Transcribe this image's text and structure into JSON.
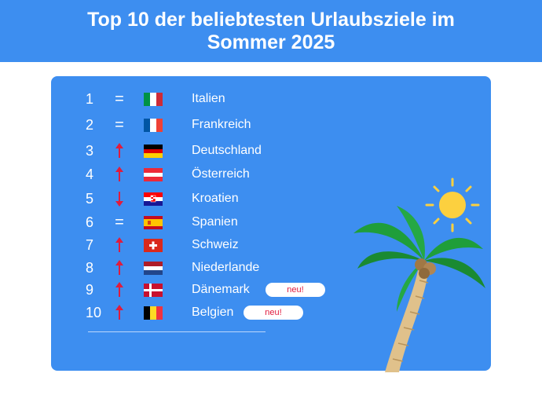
{
  "header": {
    "title": "Top 10 der beliebtesten Urlaubsziele im Sommer 2025"
  },
  "colors": {
    "background_blue": "#3d8ef0",
    "trend_red": "#e01b3d",
    "white": "#ffffff"
  },
  "ranking": [
    {
      "rank": "1",
      "trend": "=",
      "trend_icon": "equal-icon",
      "flag": "flag-italy",
      "country": "Italien"
    },
    {
      "rank": "2",
      "trend": "=",
      "trend_icon": "equal-icon",
      "flag": "flag-france",
      "country": "Frankreich"
    },
    {
      "rank": "3",
      "trend": "",
      "trend_icon": "arrow-up-icon",
      "flag": "flag-germany",
      "country": "Deutschland"
    },
    {
      "rank": "4",
      "trend": "",
      "trend_icon": "arrow-up-icon",
      "flag": "flag-austria",
      "country": "Österreich"
    },
    {
      "rank": "5",
      "trend": "",
      "trend_icon": "arrow-down-icon",
      "flag": "flag-croatia",
      "country": "Kroatien"
    },
    {
      "rank": "6",
      "trend": "=",
      "trend_icon": "equal-icon",
      "flag": "flag-spain",
      "country": "Spanien"
    },
    {
      "rank": "7",
      "trend": "",
      "trend_icon": "arrow-up-icon",
      "flag": "flag-switzerland",
      "country": "Schweiz"
    },
    {
      "rank": "8",
      "trend": "",
      "trend_icon": "arrow-up-icon",
      "flag": "flag-netherlands",
      "country": "Niederlande"
    },
    {
      "rank": "9",
      "trend": "",
      "trend_icon": "arrow-up-icon",
      "flag": "flag-denmark",
      "country": "Dänemark",
      "badge": "neu!"
    },
    {
      "rank": "10",
      "trend": "",
      "trend_icon": "arrow-up-icon",
      "flag": "flag-belgium",
      "country": "Belgien",
      "badge": "neu!"
    }
  ],
  "decorations": {
    "icons": [
      "sun-icon",
      "palm-tree-icon"
    ]
  }
}
